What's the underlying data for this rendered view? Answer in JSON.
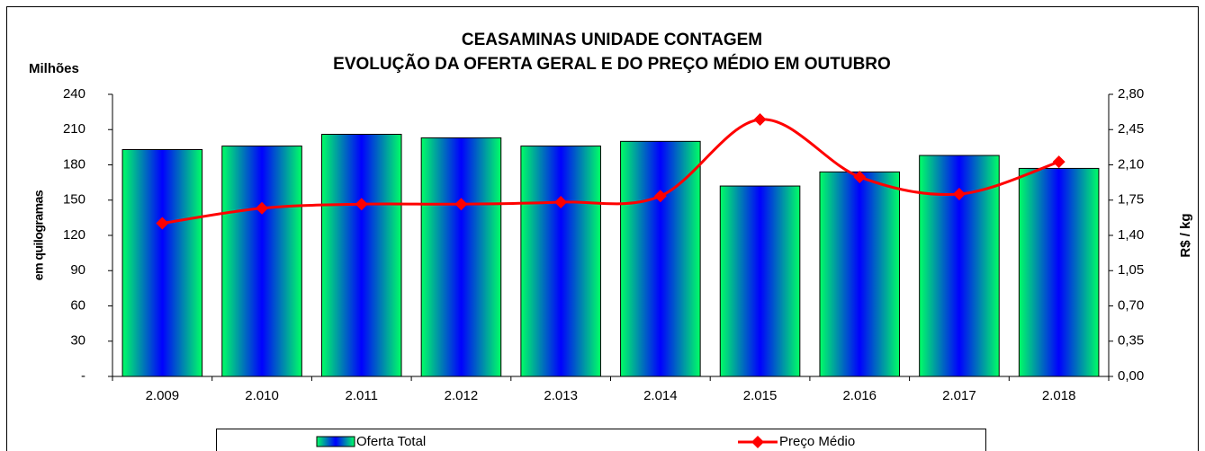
{
  "chart_data": {
    "type": "bar_line",
    "title": "CEASAMINAS UNIDADE CONTAGEM",
    "subtitle": "EVOLUÇÃO DA OFERTA GERAL E DO PREÇO MÉDIO EM OUTUBRO",
    "y_unit_label": "Milhões",
    "y_label": "em quilogramas",
    "y2_label": "R$ / kg",
    "categories": [
      "2.009",
      "2.010",
      "2.011",
      "2.012",
      "2.013",
      "2.014",
      "2.015",
      "2.016",
      "2.017",
      "2.018"
    ],
    "series": [
      {
        "name": "Oferta Total",
        "type": "bar",
        "colors": [
          "#00ff66",
          "#0000ff"
        ],
        "values": [
          193,
          196,
          206,
          203,
          196,
          200,
          162,
          174,
          188,
          177
        ]
      },
      {
        "name": "Preço Médio",
        "type": "line",
        "axis": "y2",
        "color": "#ff0000",
        "values": [
          1.52,
          1.67,
          1.71,
          1.71,
          1.73,
          1.79,
          2.55,
          1.98,
          1.81,
          2.13
        ]
      }
    ],
    "ylim": [
      0,
      240
    ],
    "yticks": [
      {
        "value": 0,
        "label": "-"
      },
      30,
      60,
      90,
      120,
      150,
      180,
      210,
      240
    ],
    "y2lim": [
      0,
      2.8
    ],
    "y2ticks": [
      {
        "value": 0,
        "label": "0,00"
      },
      {
        "value": 0.35,
        "label": "0,35"
      },
      {
        "value": 0.7,
        "label": "0,70"
      },
      {
        "value": 1.05,
        "label": "1,05"
      },
      {
        "value": 1.4,
        "label": "1,40"
      },
      {
        "value": 1.75,
        "label": "1,75"
      },
      {
        "value": 2.1,
        "label": "2,10"
      },
      {
        "value": 2.45,
        "label": "2,45"
      },
      {
        "value": 2.8,
        "label": "2,80"
      }
    ],
    "legend": "bottom"
  }
}
